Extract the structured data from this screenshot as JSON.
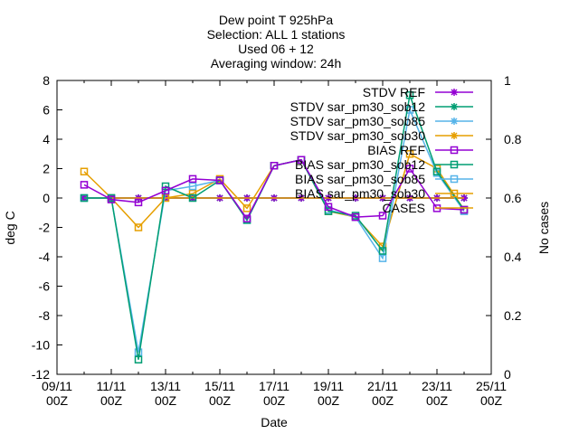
{
  "chart_data": {
    "type": "line",
    "title_lines": [
      "Dew point T 925hPa",
      "Selection: ALL      1 stations",
      "Used 06 + 12",
      "Averaging window: 24h"
    ],
    "xlabel": "Date",
    "ylabel": "deg C",
    "y2label": "No cases",
    "x_day_range": [
      9,
      25
    ],
    "x_ticks": [
      {
        "day": 9,
        "line1": "09/11",
        "line2": "00Z"
      },
      {
        "day": 11,
        "line1": "11/11",
        "line2": "00Z"
      },
      {
        "day": 13,
        "line1": "13/11",
        "line2": "00Z"
      },
      {
        "day": 15,
        "line1": "15/11",
        "line2": "00Z"
      },
      {
        "day": 17,
        "line1": "17/11",
        "line2": "00Z"
      },
      {
        "day": 19,
        "line1": "19/11",
        "line2": "00Z"
      },
      {
        "day": 21,
        "line1": "21/11",
        "line2": "00Z"
      },
      {
        "day": 23,
        "line1": "23/11",
        "line2": "00Z"
      },
      {
        "day": 25,
        "line1": "25/11",
        "line2": "00Z"
      }
    ],
    "ylim": [
      -12,
      8
    ],
    "y_ticks": [
      8,
      6,
      4,
      2,
      0,
      -2,
      -4,
      -6,
      -8,
      -10,
      -12
    ],
    "y2lim": [
      0,
      1
    ],
    "y2_ticks": [
      1,
      0.8,
      0.6,
      0.4,
      0.2,
      0
    ],
    "y2_tick_labels": [
      "1",
      "0.8",
      "0.6",
      "0.4",
      "0.2",
      "0"
    ],
    "grid": false,
    "legend_position": "top-right",
    "x": [
      10,
      11,
      12,
      13,
      14,
      15,
      16,
      17,
      18,
      19,
      20,
      21,
      22,
      23,
      24
    ],
    "series": [
      {
        "name": "STDV REF",
        "color": "#9400d3",
        "marker": "star",
        "axis": "y2",
        "values": [
          0.6,
          0.6,
          0.6,
          0.6,
          0.6,
          0.6,
          0.6,
          0.6,
          0.6,
          0.6,
          0.6,
          0.6,
          0.6,
          0.6,
          0.6
        ]
      },
      {
        "name": "STDV sar_pm30_sob12",
        "color": "#009e73",
        "marker": "star",
        "axis": "y2",
        "values": [
          0.6,
          0.6,
          0.6,
          0.6,
          0.6,
          0.6,
          0.6,
          0.6,
          0.6,
          0.6,
          0.6,
          0.6,
          0.6,
          0.6,
          0.6
        ]
      },
      {
        "name": "STDV sar_pm30_sob85",
        "color": "#56b4e9",
        "marker": "star",
        "axis": "y2",
        "values": [
          0.6,
          0.6,
          0.6,
          0.6,
          0.6,
          0.6,
          0.6,
          0.6,
          0.6,
          0.6,
          0.6,
          0.6,
          0.6,
          0.6,
          0.6
        ]
      },
      {
        "name": "STDV sar_pm30_sob30",
        "color": "#e69f00",
        "marker": "star",
        "axis": "y2",
        "values": [
          0.6,
          0.6,
          0.6,
          0.6,
          0.6,
          0.6,
          0.6,
          0.6,
          0.6,
          0.6,
          0.6,
          0.6,
          0.6,
          0.6,
          0.6
        ]
      },
      {
        "name": "BIAS REF",
        "color": "#9400d3",
        "marker": "square",
        "axis": "y",
        "values": [
          0.9,
          -0.1,
          -0.3,
          0.5,
          1.3,
          1.2,
          -1.4,
          2.2,
          2.6,
          -0.6,
          -1.3,
          -1.2,
          2.0,
          -0.7,
          -0.8
        ]
      },
      {
        "name": "BIAS sar_pm30_sob12",
        "color": "#009e73",
        "marker": "square",
        "axis": "y",
        "values": [
          0.0,
          0.0,
          -11.0,
          0.8,
          0.0,
          1.2,
          -1.5,
          2.2,
          2.6,
          -0.9,
          -1.2,
          -3.6,
          7.0,
          1.8,
          -0.8
        ]
      },
      {
        "name": "BIAS sar_pm30_sob85",
        "color": "#56b4e9",
        "marker": "square",
        "axis": "y",
        "values": [
          0.0,
          0.0,
          -10.5,
          0.5,
          0.8,
          1.2,
          -1.5,
          2.2,
          2.6,
          -0.8,
          -1.3,
          -4.1,
          6.0,
          1.7,
          -0.9
        ]
      },
      {
        "name": "BIAS sar_pm30_sob30",
        "color": "#e69f00",
        "marker": "square",
        "axis": "y",
        "values": [
          1.8,
          0.0,
          -2.0,
          0.0,
          0.3,
          1.3,
          -0.7,
          2.2,
          2.6,
          -0.9,
          -1.3,
          -3.3,
          3.0,
          2.0,
          -0.8
        ]
      },
      {
        "name": "CASES",
        "color": "#e69f00",
        "marker": "none",
        "axis": "y2",
        "values": [
          0.6,
          0.6,
          0.6,
          0.6,
          0.6,
          0.6,
          0.6,
          0.6,
          0.6,
          0.6,
          0.6,
          0.6,
          0.6,
          0.6,
          0.6
        ]
      }
    ]
  }
}
